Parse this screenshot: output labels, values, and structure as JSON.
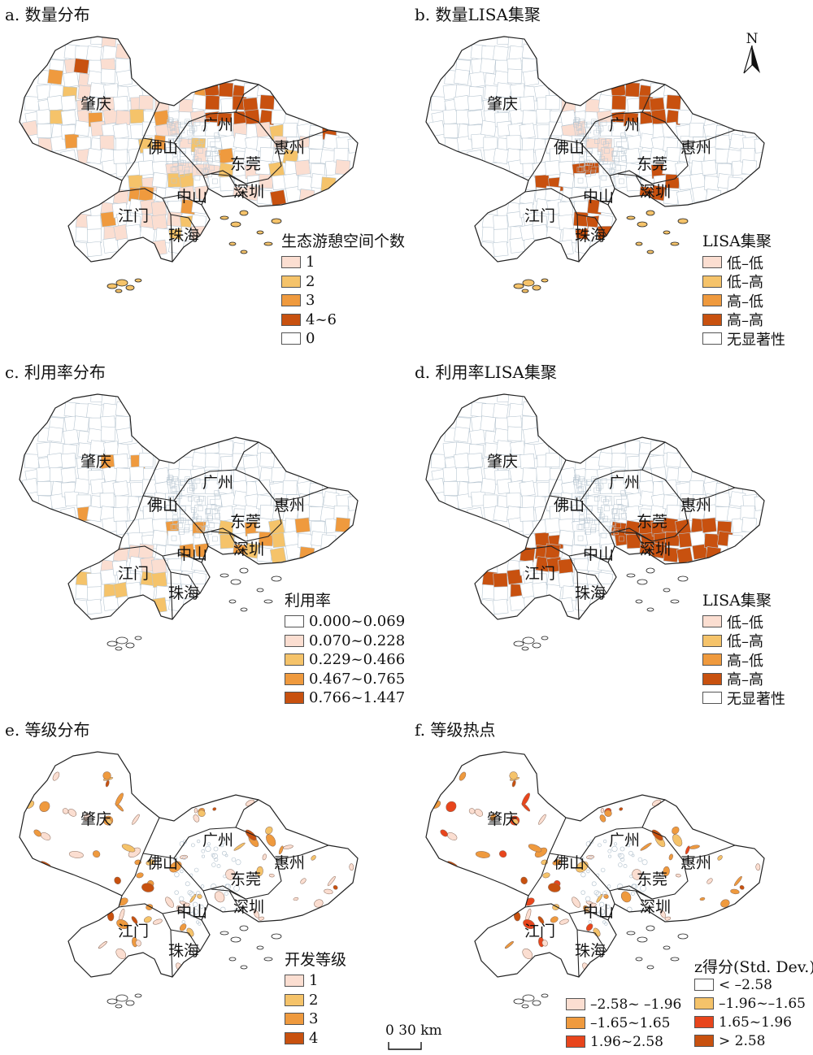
{
  "colors": {
    "c0": "#ffffff",
    "c1": "#fbded1",
    "c2": "#f5c36a",
    "c3": "#ef9a3e",
    "c4": "#c8510f",
    "red": "#e8451c",
    "outline": "#222222",
    "inner": "#b9c7d2"
  },
  "panels": [
    {
      "key": "a",
      "title": "a. 数量分布",
      "legend_title": "生态游憩空间个数",
      "legend": [
        {
          "label": "1",
          "color": "#fbded1"
        },
        {
          "label": "2",
          "color": "#f5c36a"
        },
        {
          "label": "3",
          "color": "#ef9a3e"
        },
        {
          "label": "4~6",
          "color": "#c8510f"
        },
        {
          "label": "0",
          "color": "#ffffff"
        }
      ]
    },
    {
      "key": "b",
      "title": "b. 数量LISA集聚",
      "legend_title": "LISA集聚",
      "legend": [
        {
          "label": "低–低",
          "color": "#fbded1"
        },
        {
          "label": "低–高",
          "color": "#f5c36a"
        },
        {
          "label": "高–低",
          "color": "#ef9a3e"
        },
        {
          "label": "高–高",
          "color": "#c8510f"
        },
        {
          "label": "无显著性",
          "color": "#ffffff"
        }
      ]
    },
    {
      "key": "c",
      "title": "c. 利用率分布",
      "legend_title": "利用率",
      "legend": [
        {
          "label": "0.000~0.069",
          "color": "#ffffff"
        },
        {
          "label": "0.070~0.228",
          "color": "#fbded1"
        },
        {
          "label": "0.229~0.466",
          "color": "#f5c36a"
        },
        {
          "label": "0.467~0.765",
          "color": "#ef9a3e"
        },
        {
          "label": "0.766~1.447",
          "color": "#c8510f"
        }
      ]
    },
    {
      "key": "d",
      "title": "d. 利用率LISA集聚",
      "legend_title": "LISA集聚",
      "legend": [
        {
          "label": "低–低",
          "color": "#fbded1"
        },
        {
          "label": "低–高",
          "color": "#f5c36a"
        },
        {
          "label": "高–低",
          "color": "#ef9a3e"
        },
        {
          "label": "高–高",
          "color": "#c8510f"
        },
        {
          "label": "无显著性",
          "color": "#ffffff"
        }
      ]
    },
    {
      "key": "e",
      "title": "e. 等级分布",
      "legend_title": "开发等级",
      "legend": [
        {
          "label": "1",
          "color": "#fbded1"
        },
        {
          "label": "2",
          "color": "#f5c36a"
        },
        {
          "label": "3",
          "color": "#ef9a3e"
        },
        {
          "label": "4",
          "color": "#c8510f"
        }
      ]
    },
    {
      "key": "f",
      "title": "f. 等级热点",
      "legend_title": "z得分(Std. Dev.)",
      "legend_left": [
        {
          "label": "–2.58~ –1.96",
          "color": "#fbded1"
        },
        {
          "label": "–1.65~1.65",
          "color": "#ef9a3e"
        },
        {
          "label": "1.96~2.58",
          "color": "#e8451c"
        }
      ],
      "legend_right": [
        {
          "label": "< –2.58",
          "color": "#ffffff"
        },
        {
          "label": "–1.96~–1.65",
          "color": "#f5c36a"
        },
        {
          "label": "1.65~1.96",
          "color": "#e8451c"
        },
        {
          "label": "> 2.58",
          "color": "#c8510f"
        }
      ]
    }
  ],
  "cities": [
    "肇庆",
    "广州",
    "佛山",
    "惠州",
    "东莞",
    "中山",
    "深圳",
    "江门",
    "珠海"
  ],
  "north_label": "N",
  "scale_label": "0  30 km"
}
